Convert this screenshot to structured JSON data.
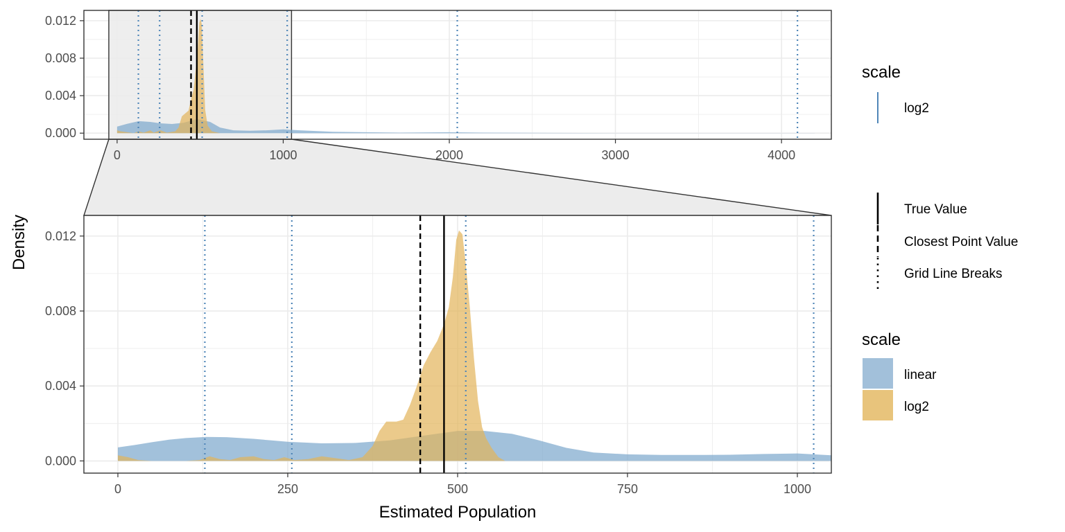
{
  "chart_data": [
    {
      "panel": "overview",
      "type": "area",
      "xlim": [
        -200,
        4300
      ],
      "ylim": [
        -0.00065,
        0.0131
      ],
      "x_ticks": [
        0,
        1000,
        2000,
        3000,
        4000
      ],
      "x_tick_labels": [
        "0",
        "1000",
        "2000",
        "3000",
        "4000"
      ],
      "y_ticks": [
        0,
        0.004,
        0.008,
        0.012
      ],
      "y_tick_labels": [
        "0.000",
        "0.004",
        "0.008",
        "0.012"
      ],
      "zoom_region": [
        -50,
        1050
      ],
      "grid_line_breaks": [
        128,
        256,
        512,
        1024,
        2048,
        4096
      ],
      "true_value": 480,
      "closest_point_value": 445,
      "series": [
        {
          "name": "linear",
          "color": "#7aa6cc",
          "points": [
            [
              0,
              0.0007
            ],
            [
              60,
              0.001
            ],
            [
              130,
              0.00128
            ],
            [
              200,
              0.0012
            ],
            [
              260,
              0.00105
            ],
            [
              330,
              0.00098
            ],
            [
              400,
              0.0011
            ],
            [
              480,
              0.0015
            ],
            [
              560,
              0.0012
            ],
            [
              620,
              0.0006
            ],
            [
              700,
              0.0003
            ],
            [
              800,
              0.00025
            ],
            [
              900,
              0.0003
            ],
            [
              1000,
              0.0004
            ],
            [
              1100,
              0.0003
            ],
            [
              1300,
              0.00015
            ],
            [
              1500,
              0.0001
            ],
            [
              1700,
              5e-05
            ],
            [
              2000,
              0.0001
            ],
            [
              2200,
              5e-05
            ],
            [
              2600,
              2e-05
            ],
            [
              3000,
              1e-05
            ],
            [
              4200,
              1e-05
            ]
          ]
        },
        {
          "name": "log2",
          "color": "#e3b45a",
          "points": [
            [
              0,
              0.0003
            ],
            [
              20,
              0.0002
            ],
            [
              60,
              0.0001
            ],
            [
              100,
              0
            ],
            [
              130,
              0.0002
            ],
            [
              160,
              5e-05
            ],
            [
              200,
              0.0003
            ],
            [
              220,
              5e-05
            ],
            [
              260,
              0.0003
            ],
            [
              300,
              5e-05
            ],
            [
              350,
              0.0002
            ],
            [
              370,
              0.0006
            ],
            [
              390,
              0.0018
            ],
            [
              410,
              0.0021
            ],
            [
              430,
              0.0024
            ],
            [
              445,
              0.0036
            ],
            [
              460,
              0.0046
            ],
            [
              470,
              0.0062
            ],
            [
              485,
              0.0089
            ],
            [
              495,
              0.0118
            ],
            [
              502,
              0.0122
            ],
            [
              510,
              0.0116
            ],
            [
              520,
              0.007
            ],
            [
              530,
              0.0025
            ],
            [
              545,
              0.0008
            ],
            [
              570,
              0.0002
            ],
            [
              620,
              0
            ]
          ]
        }
      ]
    },
    {
      "panel": "zoom",
      "type": "area",
      "xlabel": "Estimated Population",
      "ylabel": "Density",
      "xlim": [
        -50,
        1050
      ],
      "ylim": [
        -0.00065,
        0.0131
      ],
      "x_ticks": [
        0,
        250,
        500,
        750,
        1000
      ],
      "x_tick_labels": [
        "0",
        "250",
        "500",
        "750",
        "1000"
      ],
      "y_ticks": [
        0,
        0.004,
        0.008,
        0.012
      ],
      "y_tick_labels": [
        "0.000",
        "0.004",
        "0.008",
        "0.012"
      ],
      "grid_line_breaks": [
        128,
        256,
        512,
        1024
      ],
      "true_value": 480,
      "closest_point_value": 445,
      "series": [
        {
          "name": "linear",
          "color": "#7aa6cc",
          "points": [
            [
              0,
              0.00072
            ],
            [
              25,
              0.00085
            ],
            [
              50,
              0.001
            ],
            [
              75,
              0.00113
            ],
            [
              100,
              0.00122
            ],
            [
              130,
              0.00128
            ],
            [
              160,
              0.00127
            ],
            [
              200,
              0.00118
            ],
            [
              250,
              0.00102
            ],
            [
              300,
              0.00094
            ],
            [
              350,
              0.00096
            ],
            [
              400,
              0.0011
            ],
            [
              450,
              0.00135
            ],
            [
              500,
              0.0016
            ],
            [
              540,
              0.0016
            ],
            [
              580,
              0.00145
            ],
            [
              620,
              0.0011
            ],
            [
              660,
              0.0007
            ],
            [
              700,
              0.00045
            ],
            [
              750,
              0.00035
            ],
            [
              800,
              0.00032
            ],
            [
              850,
              0.00032
            ],
            [
              900,
              0.00033
            ],
            [
              950,
              0.00037
            ],
            [
              1000,
              0.0004
            ],
            [
              1050,
              0.0003
            ]
          ]
        },
        {
          "name": "log2",
          "color": "#e3b45a",
          "points": [
            [
              0,
              0.0003
            ],
            [
              15,
              0.0002
            ],
            [
              30,
              5e-05
            ],
            [
              50,
              0
            ],
            [
              100,
              0
            ],
            [
              120,
              5e-05
            ],
            [
              135,
              0.00025
            ],
            [
              150,
              0.0001
            ],
            [
              165,
              5e-05
            ],
            [
              180,
              0.0002
            ],
            [
              200,
              0.00025
            ],
            [
              215,
              0.0001
            ],
            [
              230,
              5e-05
            ],
            [
              245,
              0.0002
            ],
            [
              260,
              5e-05
            ],
            [
              280,
              0.0001
            ],
            [
              300,
              0.00025
            ],
            [
              320,
              0.00015
            ],
            [
              340,
              5e-05
            ],
            [
              360,
              0.0002
            ],
            [
              375,
              0.0008
            ],
            [
              385,
              0.0016
            ],
            [
              395,
              0.0021
            ],
            [
              410,
              0.0021
            ],
            [
              420,
              0.0022
            ],
            [
              430,
              0.003
            ],
            [
              440,
              0.004
            ],
            [
              450,
              0.0051
            ],
            [
              460,
              0.0058
            ],
            [
              470,
              0.0064
            ],
            [
              480,
              0.0073
            ],
            [
              487,
              0.0082
            ],
            [
              493,
              0.0098
            ],
            [
              498,
              0.0118
            ],
            [
              502,
              0.0123
            ],
            [
              507,
              0.0121
            ],
            [
              512,
              0.0105
            ],
            [
              518,
              0.0082
            ],
            [
              524,
              0.0055
            ],
            [
              530,
              0.0032
            ],
            [
              536,
              0.0018
            ],
            [
              542,
              0.0012
            ],
            [
              550,
              0.0007
            ],
            [
              560,
              0.0002
            ],
            [
              570,
              0
            ]
          ]
        }
      ]
    }
  ],
  "legend": {
    "top": {
      "title": "scale",
      "items": [
        {
          "label": "log2",
          "color": "#4f86b8"
        }
      ]
    },
    "lines": {
      "items": [
        {
          "label": "True Value",
          "style": "solid"
        },
        {
          "label": "Closest Point Value",
          "style": "dashed"
        },
        {
          "label": "Grid Line Breaks",
          "style": "dotted"
        }
      ]
    },
    "fill": {
      "title": "scale",
      "items": [
        {
          "label": "linear",
          "color": "#a2c0da"
        },
        {
          "label": "log2",
          "color": "#e8c47c"
        }
      ]
    }
  },
  "colors": {
    "grid": "#ebebeb",
    "panel_border": "#333333",
    "break_line": "#4f86b8",
    "zoom_fill": "#ececec"
  }
}
